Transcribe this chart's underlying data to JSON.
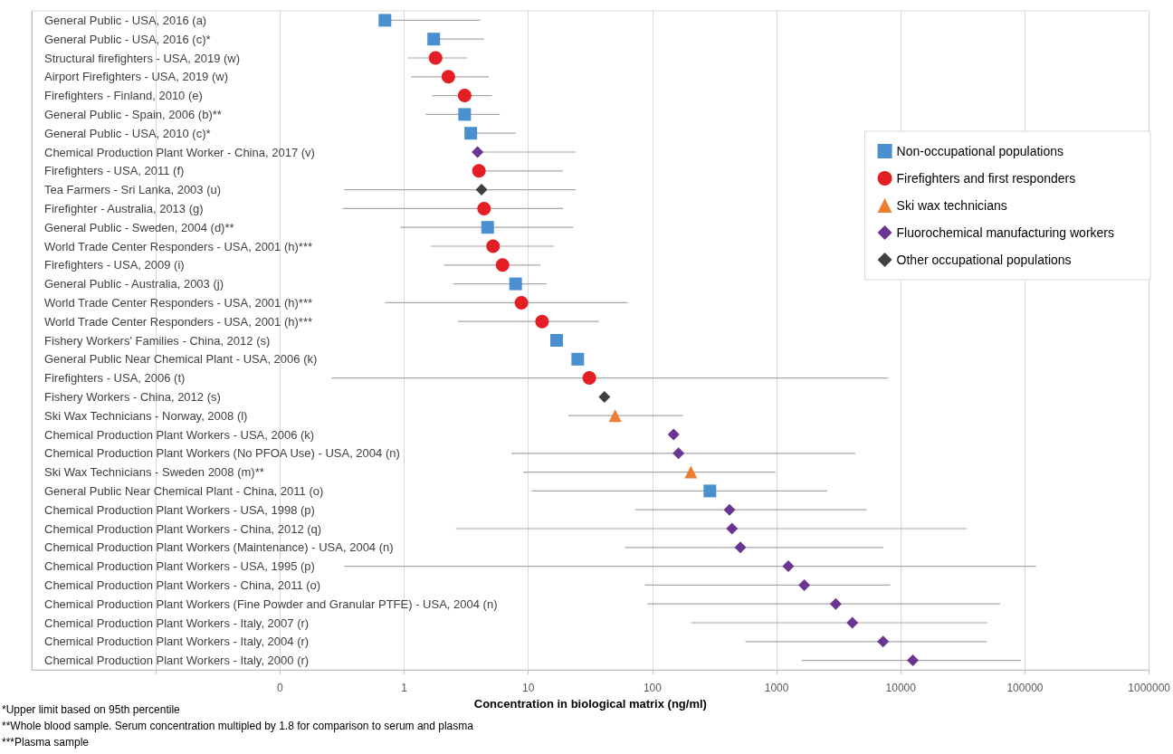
{
  "chart_data": {
    "type": "scatter",
    "orientation": "horizontal",
    "xlabel": "Concentration in biological matrix (ng/ml)",
    "categories": [
      "General Public - USA, 2016 (a)",
      "General Public - USA, 2016 (c)*",
      "Structural firefighters - USA, 2019 (w)",
      "Airport Firefighters - USA, 2019 (w)",
      "Firefighters - Finland, 2010 (e)",
      "General Public - Spain, 2006 (b)**",
      "General Public - USA, 2010 (c)*",
      "Chemical Production Plant Worker - China, 2017 (v)",
      "Firefighters - USA, 2011 (f)",
      "Tea Farmers - Sri Lanka, 2003 (u)",
      "Firefighter - Australia, 2013 (g)",
      "General Public - Sweden, 2004 (d)**",
      "World Trade Center Responders - USA, 2001 (h)***",
      "Firefighters - USA, 2009 (i)",
      "General Public - Australia, 2003 (j)",
      "World Trade Center Responders - USA, 2001 (h)***",
      "World Trade Center Responders - USA, 2001 (h)***",
      "Fishery Workers' Families - China, 2012 (s)",
      "General Public Near Chemical Plant - USA, 2006 (k)",
      "Firefighters - USA, 2006 (t)",
      "Fishery Workers - China, 2012 (s)",
      "Ski Wax Technicians - Norway, 2008 (l)",
      "Chemical Production Plant Workers - USA, 2006 (k)",
      "Chemical Production Plant Workers (No PFOA Use) - USA, 2004 (n)",
      "Ski Wax Technicians - Sweden 2008 (m)**",
      "General Public Near Chemical Plant - China, 2011 (o)",
      "Chemical Production Plant Workers - USA, 1998 (p)",
      "Chemical Production Plant Workers - China, 2012 (q)",
      "Chemical Production Plant Workers (Maintenance) - USA, 2004 (n)",
      "Chemical Production Plant Workers - USA, 1995 (p)",
      "Chemical Production Plant Workers - China, 2011 (o)",
      "Chemical Production Plant Workers (Fine Powder and Granular PTFE) - USA, 2004 (n)",
      "Chemical Production Plant Workers - Italy, 2007 (r)",
      "Chemical Production Plant Workers - Italy, 2004 (r)",
      "Chemical Production Plant Workers - Italy, 2000 (r)"
    ],
    "series": [
      {
        "name": "Non-occupational populations",
        "color": "#4a8fd0",
        "marker": "square",
        "values": [
          0.7,
          1.73,
          null,
          null,
          null,
          3.07,
          3.44,
          null,
          null,
          null,
          null,
          4.7,
          null,
          null,
          7.9,
          null,
          null,
          16.9,
          25,
          null,
          null,
          null,
          null,
          null,
          null,
          290,
          null,
          null,
          null,
          null,
          null,
          null,
          null,
          null,
          null
        ],
        "errors": [
          [
            0.7,
            4.1
          ],
          [
            1.73,
            4.4
          ],
          null,
          null,
          null,
          [
            1.49,
            5.9
          ],
          [
            3.44,
            7.9
          ],
          null,
          null,
          null,
          null,
          [
            0.93,
            23
          ],
          null,
          null,
          [
            2.5,
            14
          ],
          null,
          null,
          null,
          null,
          null,
          null,
          null,
          null,
          null,
          null,
          [
            10.6,
            2550
          ],
          null,
          null,
          null,
          null,
          null,
          null,
          null,
          null,
          null
        ]
      },
      {
        "name": "Firefighters and first responders",
        "color": "#e31e24",
        "marker": "circle",
        "values": [
          null,
          null,
          1.79,
          2.27,
          3.07,
          null,
          null,
          null,
          4.0,
          null,
          4.4,
          null,
          5.2,
          6.2,
          null,
          8.8,
          12.9,
          null,
          null,
          31,
          null,
          null,
          null,
          null,
          null,
          null,
          null,
          null,
          null,
          null,
          null,
          null,
          null,
          null,
          null
        ],
        "errors": [
          null,
          null,
          [
            1.07,
            3.2
          ],
          [
            1.14,
            4.8
          ],
          [
            1.68,
            5.1
          ],
          null,
          null,
          null,
          [
            4.0,
            19
          ],
          null,
          [
            0.32,
            19
          ],
          null,
          [
            1.65,
            16
          ],
          [
            2.1,
            12.5
          ],
          null,
          [
            0.7,
            63
          ],
          [
            2.7,
            37
          ],
          null,
          null,
          [
            0.26,
            7900
          ],
          null,
          null,
          null,
          null,
          null,
          null,
          null,
          null,
          null,
          null,
          null,
          null,
          null,
          null,
          null
        ]
      },
      {
        "name": "Ski wax technicians",
        "color": "#ed7d31",
        "marker": "triangle",
        "values": [
          null,
          null,
          null,
          null,
          null,
          null,
          null,
          null,
          null,
          null,
          null,
          null,
          null,
          null,
          null,
          null,
          null,
          null,
          null,
          null,
          null,
          50,
          null,
          null,
          204,
          null,
          null,
          null,
          null,
          null,
          null,
          null,
          null,
          null,
          null
        ],
        "errors": [
          null,
          null,
          null,
          null,
          null,
          null,
          null,
          null,
          null,
          null,
          null,
          null,
          null,
          null,
          null,
          null,
          null,
          null,
          null,
          null,
          null,
          [
            21,
            175
          ],
          null,
          null,
          [
            9.1,
            980
          ],
          null,
          null,
          null,
          null,
          null,
          null,
          null,
          null,
          null,
          null
        ]
      },
      {
        "name": "Fluorochemical manufacturing workers",
        "color": "#6b3592",
        "marker": "diamond",
        "values": [
          null,
          null,
          null,
          null,
          null,
          null,
          null,
          3.9,
          null,
          null,
          null,
          null,
          null,
          null,
          null,
          null,
          null,
          null,
          null,
          null,
          null,
          null,
          148,
          162,
          null,
          null,
          417,
          437,
          510,
          1240,
          1670,
          2990,
          4070,
          7200,
          12500
        ],
        "errors": [
          null,
          null,
          null,
          null,
          null,
          null,
          null,
          [
            3.9,
            24
          ],
          null,
          null,
          null,
          null,
          null,
          null,
          null,
          null,
          null,
          null,
          null,
          null,
          null,
          null,
          null,
          [
            7.3,
            4300
          ],
          null,
          null,
          [
            73,
            5300
          ],
          [
            2.6,
            34000
          ],
          [
            60,
            7200
          ],
          [
            0.33,
            123000
          ],
          [
            87,
            8200
          ],
          [
            91,
            63000
          ],
          [
            204,
            50000
          ],
          [
            560,
            49000
          ],
          [
            1590,
            93000
          ]
        ]
      },
      {
        "name": "Other occupational populations",
        "color": "#404040",
        "marker": "diamond",
        "values": [
          null,
          null,
          null,
          null,
          null,
          null,
          null,
          null,
          null,
          4.2,
          null,
          null,
          null,
          null,
          null,
          null,
          null,
          null,
          null,
          null,
          41,
          null,
          null,
          null,
          null,
          null,
          null,
          null,
          null,
          null,
          null,
          null,
          null,
          null,
          null
        ],
        "errors": [
          null,
          null,
          null,
          null,
          null,
          null,
          null,
          null,
          null,
          [
            0.33,
            24
          ],
          null,
          null,
          null,
          null,
          null,
          null,
          null,
          null,
          null,
          null,
          null,
          null,
          null,
          null,
          null,
          null,
          null,
          null,
          null,
          null,
          null,
          null,
          null,
          null,
          null
        ]
      }
    ],
    "log": "x",
    "xlim": [
      0.001,
      1000000
    ],
    "xticks": [
      {
        "value": 0.01,
        "label": null
      },
      {
        "value": 0.1,
        "label": "0"
      },
      1,
      10,
      100,
      1000,
      10000,
      100000,
      1000000
    ],
    "grid": "x",
    "legend": "right",
    "annotations": [
      "*Upper limit based on 95th percentile",
      "**Whole blood sample. Serum concentration multipled by 1.8 for comparison to serum and plasma",
      "***Plasma sample"
    ]
  }
}
